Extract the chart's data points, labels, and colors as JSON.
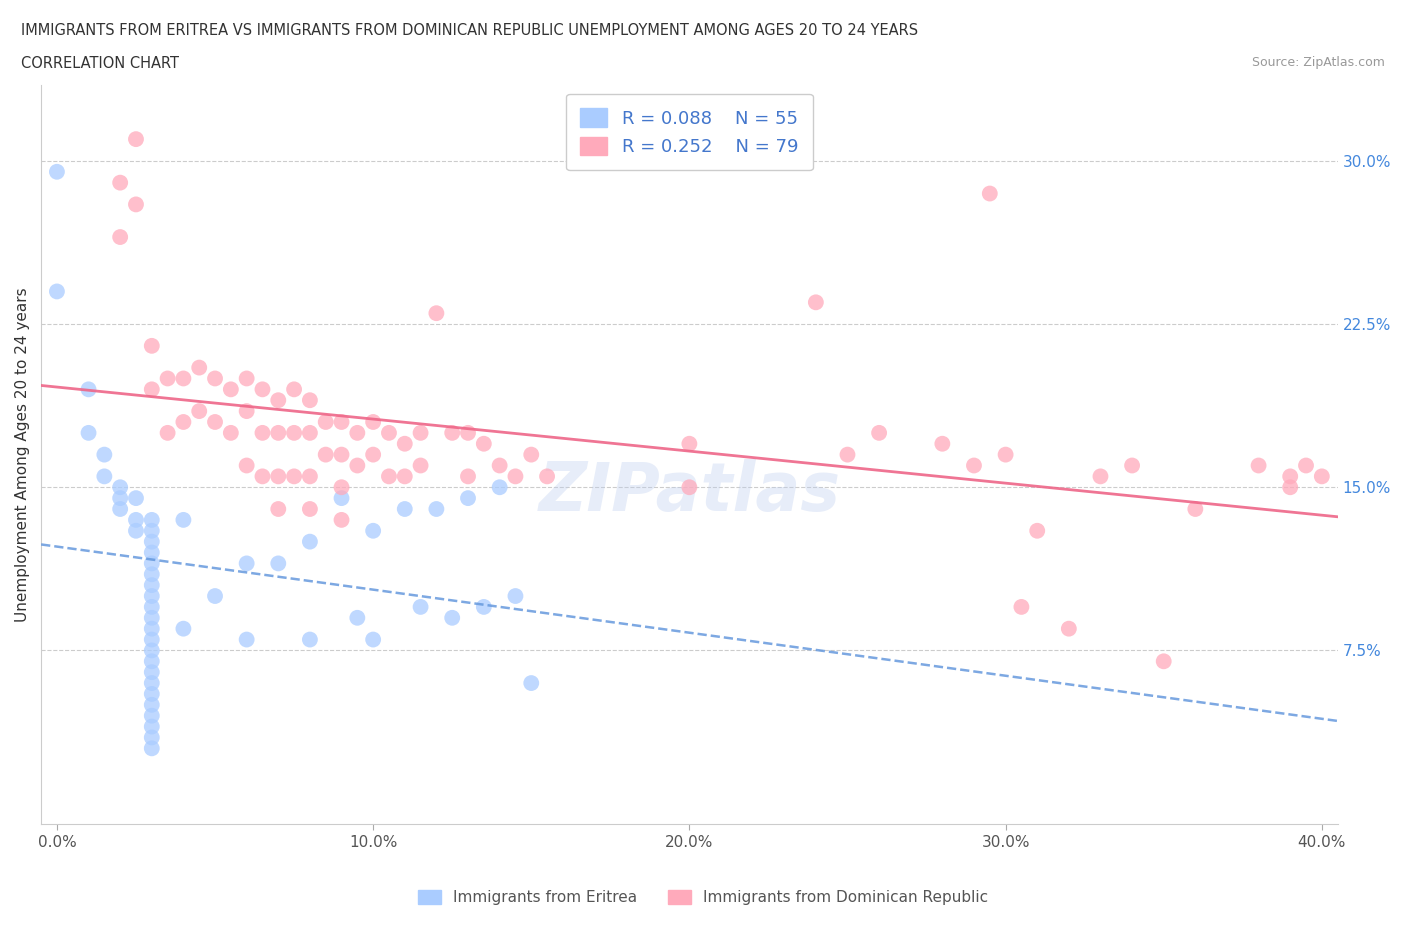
{
  "title_line1": "IMMIGRANTS FROM ERITREA VS IMMIGRANTS FROM DOMINICAN REPUBLIC UNEMPLOYMENT AMONG AGES 20 TO 24 YEARS",
  "title_line2": "CORRELATION CHART",
  "source": "Source: ZipAtlas.com",
  "ylabel": "Unemployment Among Ages 20 to 24 years",
  "xlim": [
    -0.005,
    0.405
  ],
  "ylim": [
    -0.005,
    0.335
  ],
  "xticks": [
    0.0,
    0.1,
    0.2,
    0.3,
    0.4
  ],
  "xticklabels": [
    "0.0%",
    "10.0%",
    "20.0%",
    "30.0%",
    "40.0%"
  ],
  "ytick_right_labels": [
    "7.5%",
    "15.0%",
    "22.5%",
    "30.0%"
  ],
  "ytick_right_values": [
    0.075,
    0.15,
    0.225,
    0.3
  ],
  "grid_color": "#cccccc",
  "background_color": "#ffffff",
  "eritrea_color": "#aaccff",
  "dominican_color": "#ffaabb",
  "eritrea_R": 0.088,
  "eritrea_N": 55,
  "dominican_R": 0.252,
  "dominican_N": 79,
  "legend_label1": "Immigrants from Eritrea",
  "legend_label2": "Immigrants from Dominican Republic",
  "watermark": "ZIPatlas",
  "eritrea_line_color": "#6699dd",
  "dominican_line_color": "#ee6688",
  "eritrea_scatter": [
    [
      0.0,
      0.295
    ],
    [
      0.0,
      0.24
    ],
    [
      0.01,
      0.195
    ],
    [
      0.01,
      0.175
    ],
    [
      0.015,
      0.165
    ],
    [
      0.015,
      0.155
    ],
    [
      0.02,
      0.15
    ],
    [
      0.02,
      0.145
    ],
    [
      0.02,
      0.14
    ],
    [
      0.025,
      0.145
    ],
    [
      0.025,
      0.135
    ],
    [
      0.025,
      0.13
    ],
    [
      0.03,
      0.135
    ],
    [
      0.03,
      0.13
    ],
    [
      0.03,
      0.125
    ],
    [
      0.03,
      0.12
    ],
    [
      0.03,
      0.115
    ],
    [
      0.03,
      0.11
    ],
    [
      0.03,
      0.105
    ],
    [
      0.03,
      0.1
    ],
    [
      0.03,
      0.095
    ],
    [
      0.03,
      0.09
    ],
    [
      0.03,
      0.085
    ],
    [
      0.03,
      0.08
    ],
    [
      0.03,
      0.075
    ],
    [
      0.03,
      0.07
    ],
    [
      0.03,
      0.065
    ],
    [
      0.03,
      0.06
    ],
    [
      0.03,
      0.055
    ],
    [
      0.03,
      0.05
    ],
    [
      0.03,
      0.045
    ],
    [
      0.03,
      0.04
    ],
    [
      0.03,
      0.035
    ],
    [
      0.03,
      0.03
    ],
    [
      0.04,
      0.135
    ],
    [
      0.04,
      0.085
    ],
    [
      0.05,
      0.1
    ],
    [
      0.06,
      0.115
    ],
    [
      0.06,
      0.08
    ],
    [
      0.07,
      0.115
    ],
    [
      0.08,
      0.125
    ],
    [
      0.08,
      0.08
    ],
    [
      0.09,
      0.145
    ],
    [
      0.095,
      0.09
    ],
    [
      0.1,
      0.13
    ],
    [
      0.1,
      0.08
    ],
    [
      0.11,
      0.14
    ],
    [
      0.115,
      0.095
    ],
    [
      0.12,
      0.14
    ],
    [
      0.125,
      0.09
    ],
    [
      0.13,
      0.145
    ],
    [
      0.135,
      0.095
    ],
    [
      0.14,
      0.15
    ],
    [
      0.145,
      0.1
    ],
    [
      0.15,
      0.06
    ]
  ],
  "dominican_scatter": [
    [
      0.02,
      0.29
    ],
    [
      0.02,
      0.265
    ],
    [
      0.025,
      0.31
    ],
    [
      0.025,
      0.28
    ],
    [
      0.03,
      0.215
    ],
    [
      0.03,
      0.195
    ],
    [
      0.035,
      0.2
    ],
    [
      0.035,
      0.175
    ],
    [
      0.04,
      0.2
    ],
    [
      0.04,
      0.18
    ],
    [
      0.045,
      0.205
    ],
    [
      0.045,
      0.185
    ],
    [
      0.05,
      0.2
    ],
    [
      0.05,
      0.18
    ],
    [
      0.055,
      0.195
    ],
    [
      0.055,
      0.175
    ],
    [
      0.06,
      0.2
    ],
    [
      0.06,
      0.185
    ],
    [
      0.06,
      0.16
    ],
    [
      0.065,
      0.195
    ],
    [
      0.065,
      0.175
    ],
    [
      0.065,
      0.155
    ],
    [
      0.07,
      0.19
    ],
    [
      0.07,
      0.175
    ],
    [
      0.07,
      0.155
    ],
    [
      0.07,
      0.14
    ],
    [
      0.075,
      0.195
    ],
    [
      0.075,
      0.175
    ],
    [
      0.075,
      0.155
    ],
    [
      0.08,
      0.19
    ],
    [
      0.08,
      0.175
    ],
    [
      0.08,
      0.155
    ],
    [
      0.08,
      0.14
    ],
    [
      0.085,
      0.18
    ],
    [
      0.085,
      0.165
    ],
    [
      0.09,
      0.18
    ],
    [
      0.09,
      0.165
    ],
    [
      0.09,
      0.15
    ],
    [
      0.09,
      0.135
    ],
    [
      0.095,
      0.175
    ],
    [
      0.095,
      0.16
    ],
    [
      0.1,
      0.18
    ],
    [
      0.1,
      0.165
    ],
    [
      0.105,
      0.175
    ],
    [
      0.105,
      0.155
    ],
    [
      0.11,
      0.17
    ],
    [
      0.11,
      0.155
    ],
    [
      0.115,
      0.175
    ],
    [
      0.115,
      0.16
    ],
    [
      0.12,
      0.23
    ],
    [
      0.125,
      0.175
    ],
    [
      0.13,
      0.175
    ],
    [
      0.13,
      0.155
    ],
    [
      0.135,
      0.17
    ],
    [
      0.14,
      0.16
    ],
    [
      0.145,
      0.155
    ],
    [
      0.15,
      0.165
    ],
    [
      0.155,
      0.155
    ],
    [
      0.2,
      0.17
    ],
    [
      0.2,
      0.15
    ],
    [
      0.24,
      0.235
    ],
    [
      0.25,
      0.165
    ],
    [
      0.26,
      0.175
    ],
    [
      0.28,
      0.17
    ],
    [
      0.29,
      0.16
    ],
    [
      0.295,
      0.285
    ],
    [
      0.3,
      0.165
    ],
    [
      0.305,
      0.095
    ],
    [
      0.31,
      0.13
    ],
    [
      0.32,
      0.085
    ],
    [
      0.33,
      0.155
    ],
    [
      0.34,
      0.16
    ],
    [
      0.35,
      0.07
    ],
    [
      0.36,
      0.14
    ],
    [
      0.38,
      0.16
    ],
    [
      0.39,
      0.15
    ],
    [
      0.39,
      0.155
    ],
    [
      0.395,
      0.16
    ],
    [
      0.4,
      0.155
    ]
  ]
}
